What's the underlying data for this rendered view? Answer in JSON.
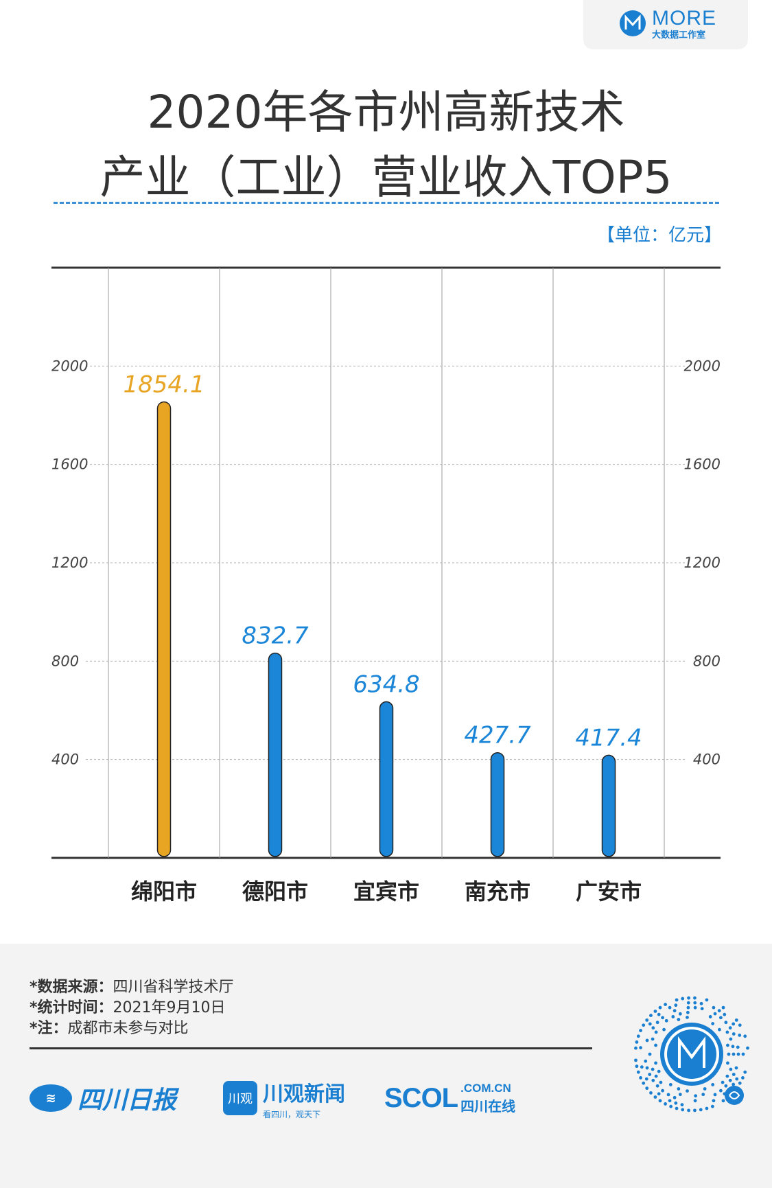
{
  "brand": {
    "name": "MORE",
    "sub": "大数据工作室",
    "logo_icon": "more-m-logo-icon"
  },
  "title": {
    "line1": "2020年各市州高新技术",
    "line2": "产业（工业）营业收入TOP5"
  },
  "unit": "【单位：亿元】",
  "colors": {
    "highlight": "#E8A524",
    "bar": "#1B86D8",
    "value_highlight": "#E8A524",
    "value": "#1B86D8",
    "accent": "#1a7fd0"
  },
  "chart_data": {
    "type": "bar",
    "categories": [
      "绵阳市",
      "德阳市",
      "宜宾市",
      "南充市",
      "广安市"
    ],
    "values": [
      1854.1,
      832.7,
      634.8,
      427.7,
      417.4
    ],
    "value_labels": [
      "1854.1",
      "832.7",
      "634.8",
      "427.7",
      "417.4"
    ],
    "yticks": [
      400,
      800,
      1200,
      1600,
      2000
    ],
    "ytick_labels": [
      "400",
      "800",
      "1200",
      "1600",
      "2000"
    ],
    "ylim": [
      0,
      2400
    ],
    "highlight_index": 0,
    "grid": true,
    "title": "2020年各市州高新技术产业（工业）营业收入TOP5"
  },
  "footer": {
    "source_label": "*数据来源：",
    "source_value": "四川省科学技术厅",
    "time_label": "*统计时间：",
    "time_value": "2021年9月10日",
    "note_label": "*注：",
    "note_value": "成都市未参与对比",
    "logos": {
      "scdaily": "四川日报",
      "chuanguan": "川观新闻",
      "chuanguan_mark": "川观",
      "chuanguan_slogan": "看四川，观天下",
      "scol": "SCOL",
      "scol_domain": ".COM.CN",
      "scol_cn": "四川在线"
    },
    "qr_icon": "qr-code-icon"
  }
}
